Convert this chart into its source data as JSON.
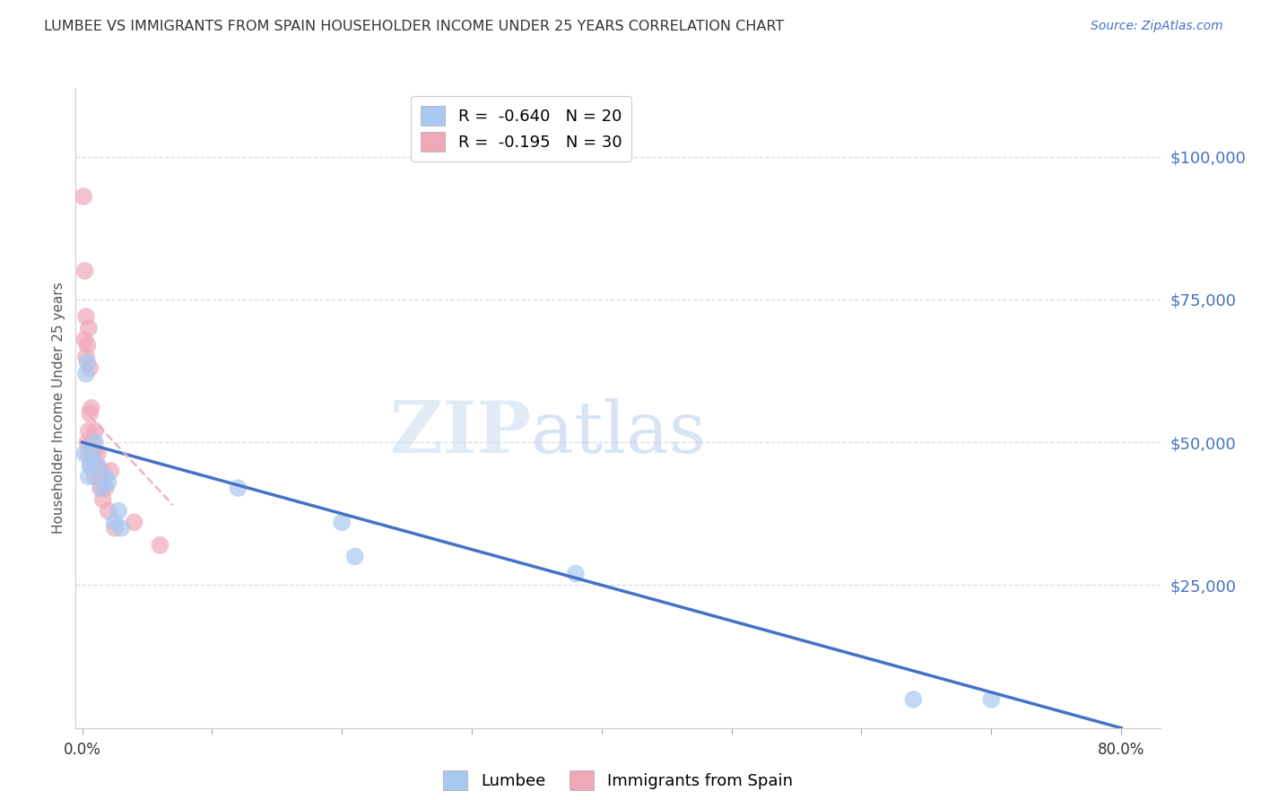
{
  "title": "LUMBEE VS IMMIGRANTS FROM SPAIN HOUSEHOLDER INCOME UNDER 25 YEARS CORRELATION CHART",
  "source": "Source: ZipAtlas.com",
  "ylabel": "Householder Income Under 25 years",
  "xlabel_ticks": [
    "0.0%",
    "",
    "",
    "",
    "",
    "",
    "",
    "",
    "80.0%"
  ],
  "xlabel_vals": [
    0.0,
    0.1,
    0.2,
    0.3,
    0.4,
    0.5,
    0.6,
    0.7,
    0.8
  ],
  "ytick_labels": [
    "$100,000",
    "$75,000",
    "$50,000",
    "$25,000"
  ],
  "ytick_vals": [
    100000,
    75000,
    50000,
    25000
  ],
  "ylim": [
    0,
    112000
  ],
  "xlim": [
    -0.005,
    0.83
  ],
  "lumbee_color": "#A8C8F0",
  "spain_color": "#F0A8B8",
  "lumbee_label": "Lumbee",
  "spain_label": "Immigrants from Spain",
  "lumbee_R": "-0.640",
  "lumbee_N": "20",
  "spain_R": "-0.195",
  "spain_N": "30",
  "lumbee_x": [
    0.002,
    0.003,
    0.004,
    0.005,
    0.006,
    0.007,
    0.01,
    0.012,
    0.015,
    0.018,
    0.02,
    0.025,
    0.028,
    0.03,
    0.12,
    0.2,
    0.21,
    0.38,
    0.64,
    0.7
  ],
  "lumbee_y": [
    48000,
    62000,
    64000,
    44000,
    46000,
    48000,
    50000,
    46000,
    42000,
    44000,
    43000,
    36000,
    38000,
    35000,
    42000,
    36000,
    30000,
    27000,
    5000,
    5000
  ],
  "spain_x": [
    0.001,
    0.002,
    0.002,
    0.003,
    0.003,
    0.004,
    0.004,
    0.005,
    0.005,
    0.005,
    0.006,
    0.006,
    0.007,
    0.007,
    0.008,
    0.009,
    0.01,
    0.01,
    0.011,
    0.012,
    0.013,
    0.014,
    0.015,
    0.016,
    0.018,
    0.02,
    0.022,
    0.025,
    0.04,
    0.06
  ],
  "spain_y": [
    93000,
    80000,
    68000,
    72000,
    65000,
    67000,
    50000,
    70000,
    52000,
    48000,
    63000,
    55000,
    56000,
    46000,
    50000,
    48000,
    52000,
    44000,
    46000,
    48000,
    44000,
    42000,
    45000,
    40000,
    42000,
    38000,
    45000,
    35000,
    36000,
    32000
  ],
  "lumbee_line_x": [
    0.0,
    0.8
  ],
  "lumbee_line_y": [
    50000,
    0
  ],
  "spain_line_x": [
    0.0,
    0.07
  ],
  "spain_line_y": [
    56000,
    39000
  ],
  "regression_line_color_lumbee": "#4472C4",
  "regression_line_color_spain": "#E8B0C0",
  "watermark_zip": "ZIP",
  "watermark_atlas": "atlas",
  "background_color": "#FFFFFF",
  "grid_color": "#DDDDDD"
}
